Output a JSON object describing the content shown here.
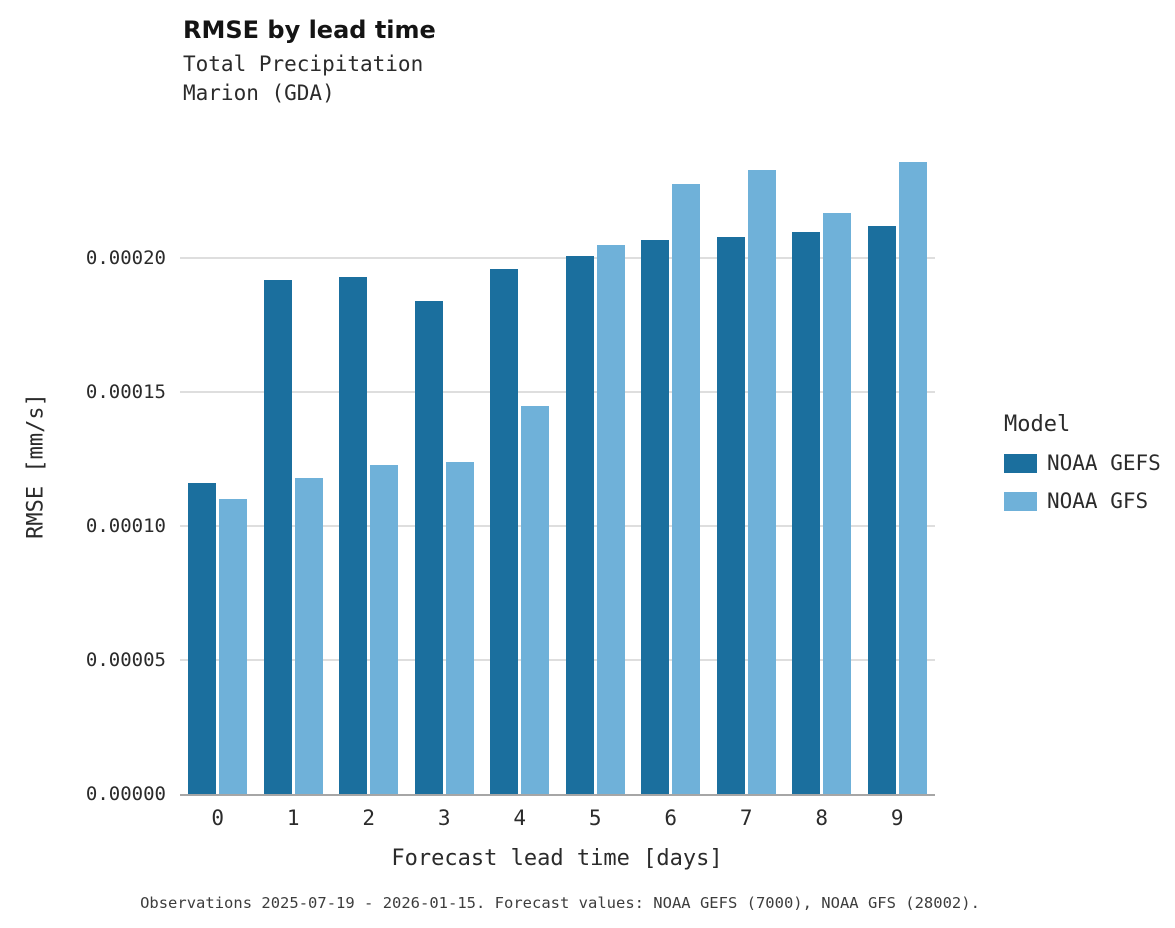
{
  "title": "RMSE by lead time",
  "subtitle_line1": "Total Precipitation",
  "subtitle_line2": "Marion (GDA)",
  "footnote": "Observations 2025-07-19 - 2026-01-15. Forecast values: NOAA GEFS (7000), NOAA GFS (28002).",
  "chart_data": {
    "type": "bar",
    "title": "RMSE by lead time",
    "subtitle": [
      "Total Precipitation",
      "Marion (GDA)"
    ],
    "xlabel": "Forecast lead time [days]",
    "ylabel": "RMSE [mm/s]",
    "categories": [
      "0",
      "1",
      "2",
      "3",
      "4",
      "5",
      "6",
      "7",
      "8",
      "9"
    ],
    "series": [
      {
        "name": "NOAA GEFS",
        "color": "#1b6f9e",
        "values": [
          0.000116,
          0.000192,
          0.000193,
          0.000184,
          0.000196,
          0.000201,
          0.000207,
          0.000208,
          0.00021,
          0.000212
        ]
      },
      {
        "name": "NOAA GFS",
        "color": "#6fb1d9",
        "values": [
          0.00011,
          0.000118,
          0.000123,
          0.000124,
          0.000145,
          0.000205,
          0.000228,
          0.000233,
          0.000217,
          0.000236
        ]
      }
    ],
    "ylim": [
      0,
      0.000245
    ],
    "yticks": [
      {
        "value": 0.0,
        "label": "0.00000"
      },
      {
        "value": 5e-05,
        "label": "0.00005"
      },
      {
        "value": 0.0001,
        "label": "0.00010"
      },
      {
        "value": 0.00015,
        "label": "0.00015"
      },
      {
        "value": 0.0002,
        "label": "0.00020"
      }
    ],
    "grid": "horizontal",
    "legend_title": "Model",
    "legend_position": "right"
  }
}
